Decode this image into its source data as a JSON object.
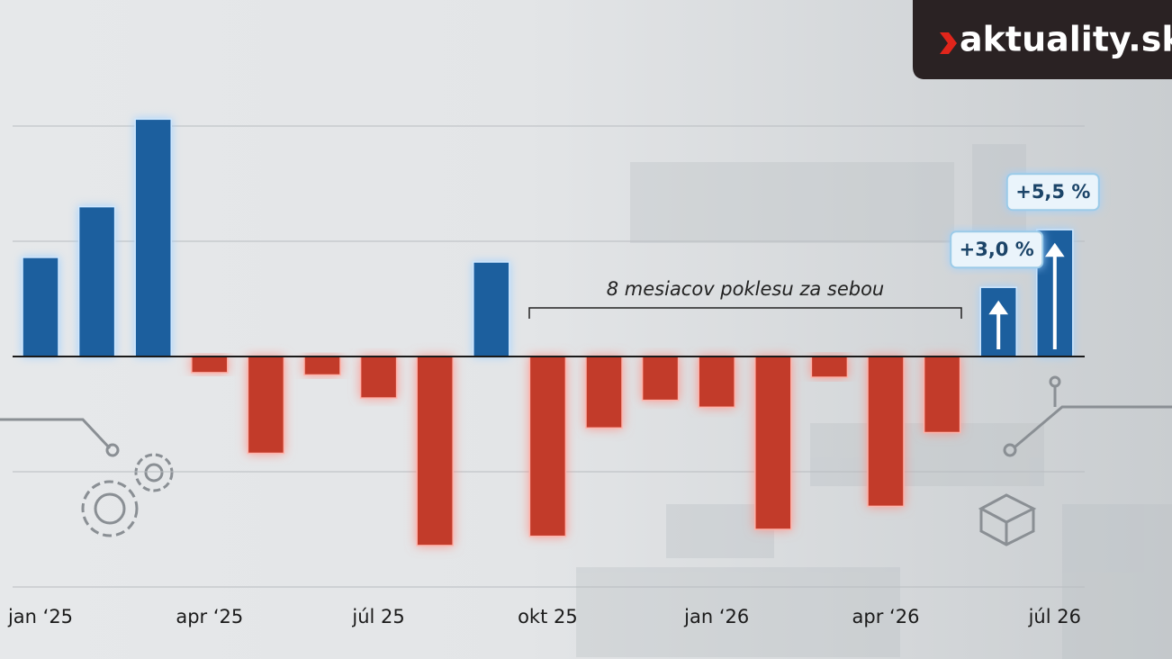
{
  "logo": "aktuality.sk",
  "chart_data": {
    "type": "bar",
    "annotation": "8 mesiacov poklesu za sebou",
    "categories": [
      "jan ‘25",
      null,
      null,
      "apr ‘25",
      null,
      null,
      "júl 25",
      null,
      null,
      "okt 25",
      null,
      null,
      "jan ‘26",
      null,
      null,
      "apr ‘26",
      null,
      null,
      "júl 26"
    ],
    "values": [
      4.3,
      6.5,
      10.3,
      -0.7,
      -4.2,
      -0.8,
      -1.8,
      -8.2,
      4.1,
      -7.8,
      -3.1,
      -1.9,
      -2.2,
      -7.5,
      -0.9,
      -6.5,
      -3.3,
      3.0,
      5.5
    ],
    "value_labels": [
      null,
      null,
      null,
      null,
      null,
      null,
      null,
      null,
      null,
      null,
      null,
      null,
      null,
      null,
      null,
      null,
      null,
      "+3,0 %",
      "+5,5 %"
    ],
    "positive_color": "#1f5e9e",
    "negative_color": "#c23a2c",
    "ylim": [
      -10,
      11
    ],
    "yticks": [
      -10,
      -5,
      0,
      5,
      10
    ],
    "grid": true
  }
}
